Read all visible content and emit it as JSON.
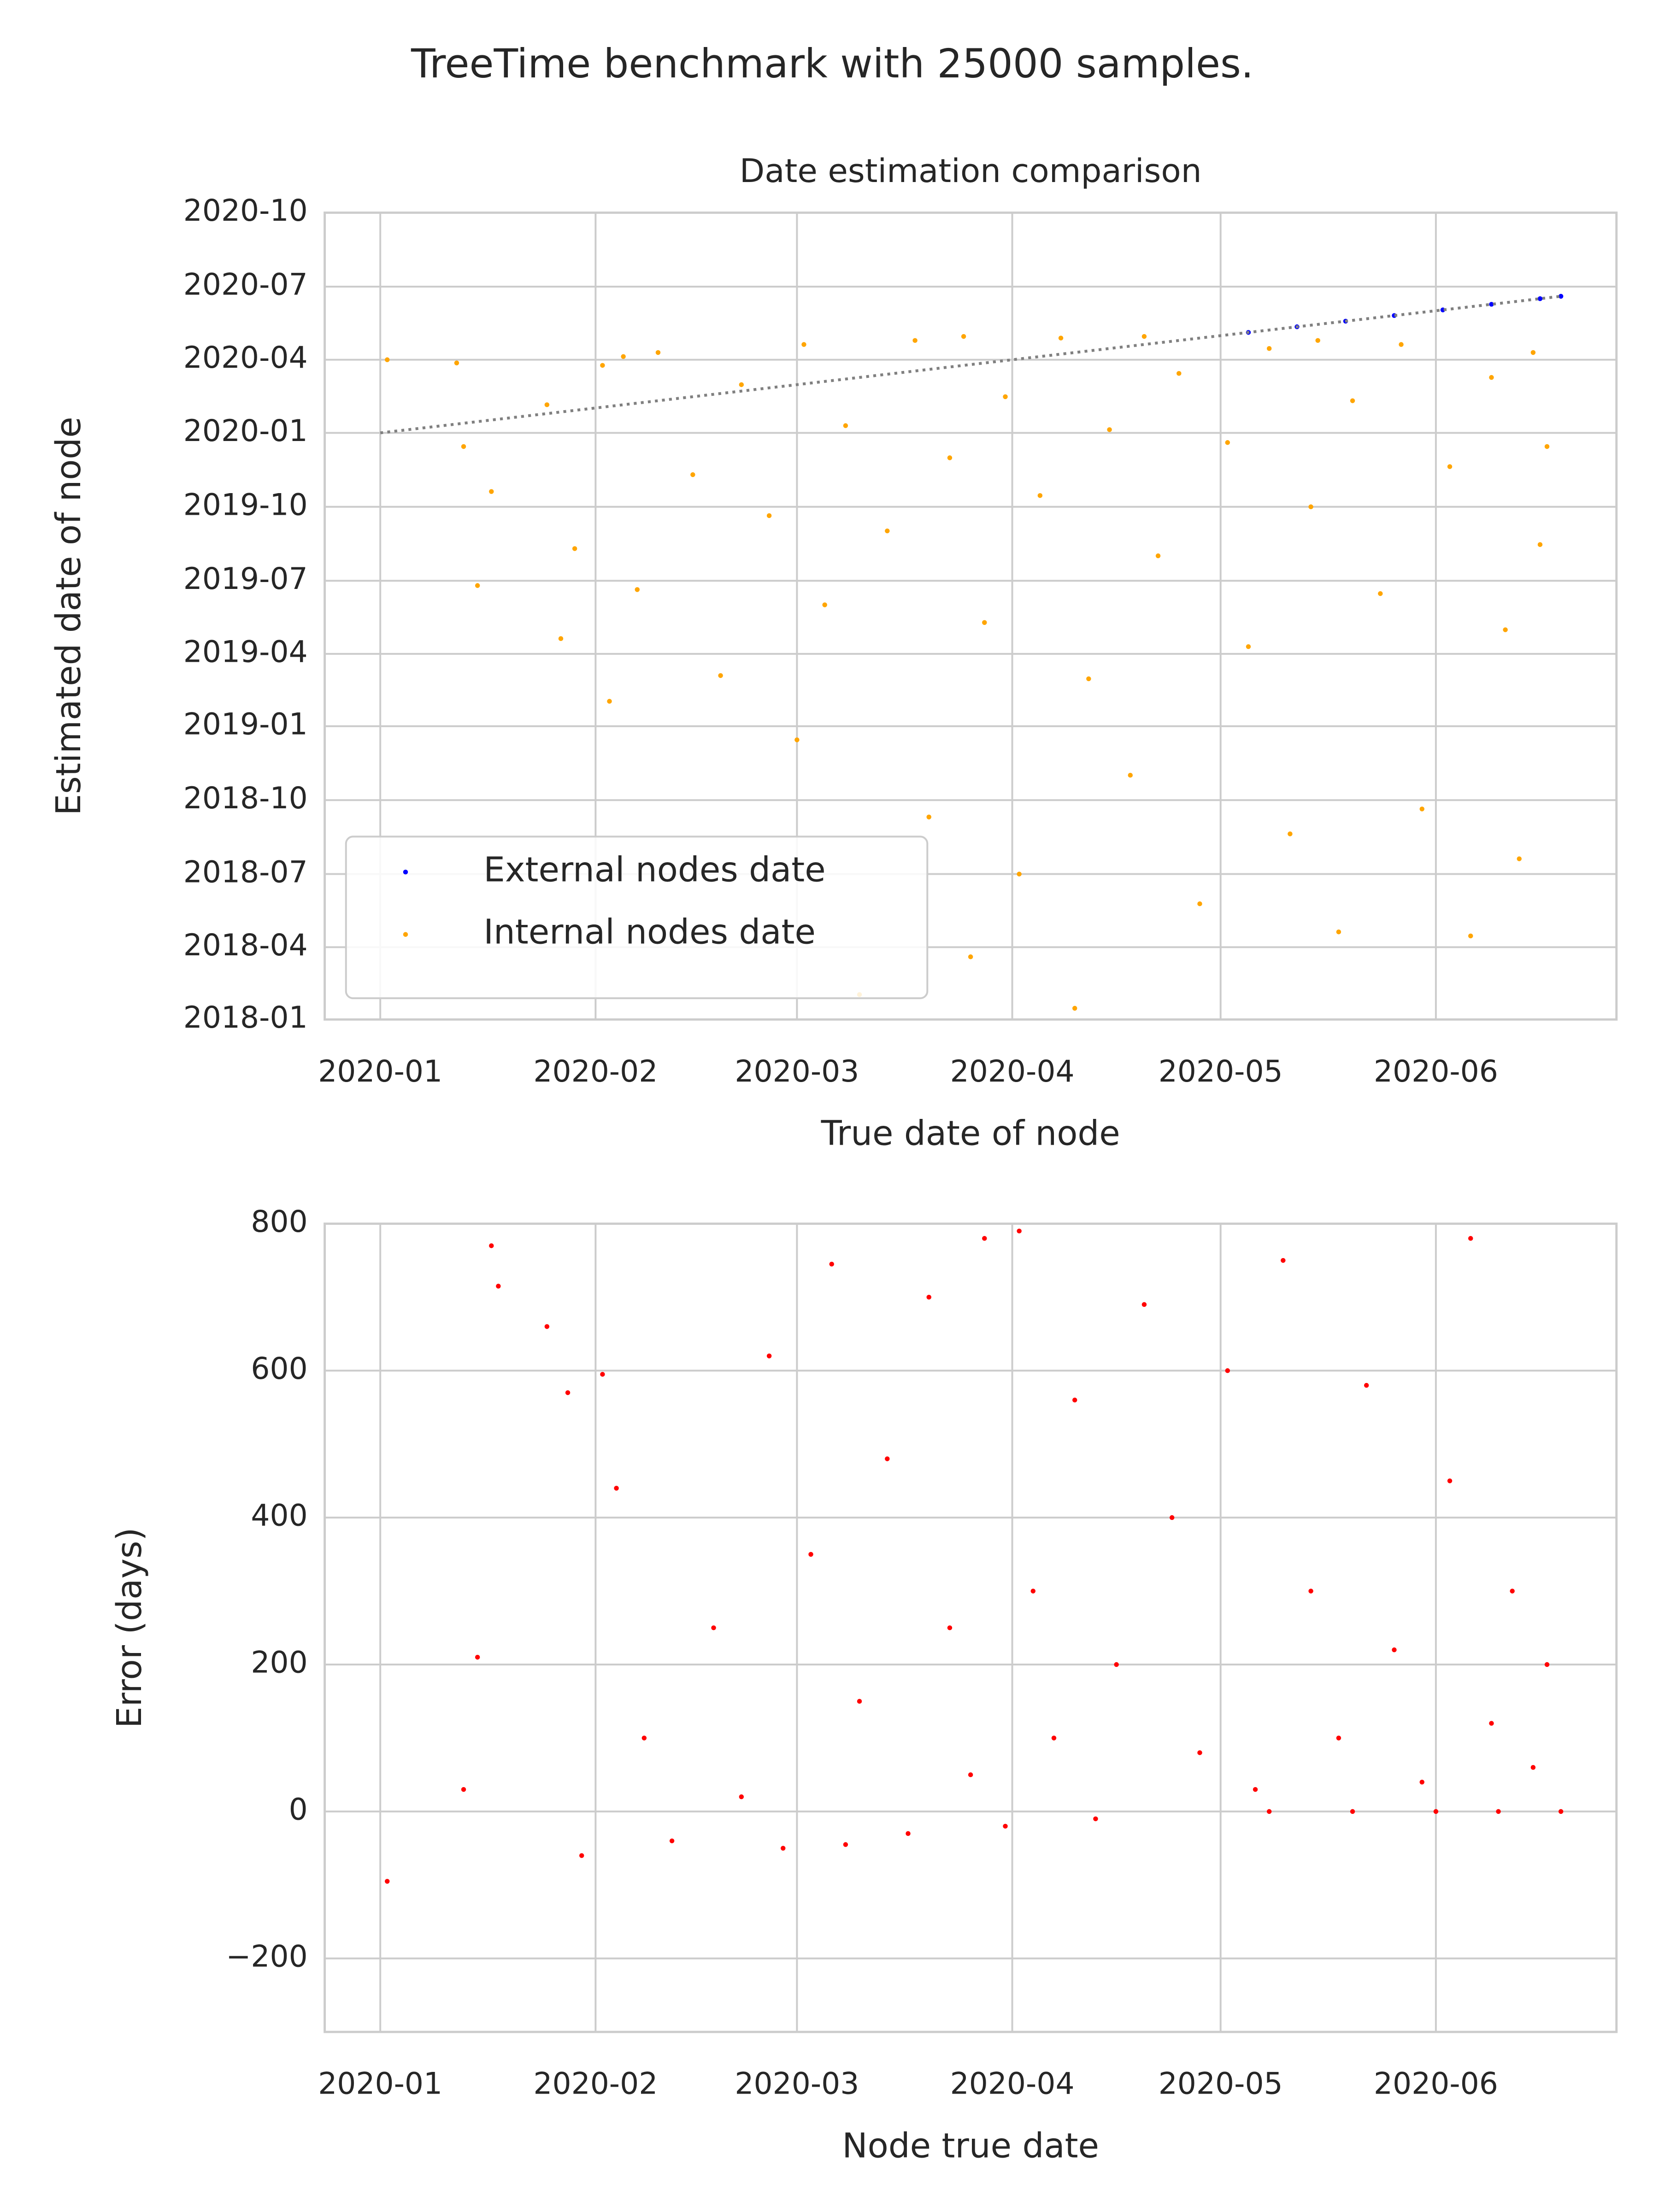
{
  "title": "TreeTime benchmark with 25000 samples.",
  "chart_data": [
    {
      "type": "scatter",
      "title": "Date estimation comparison",
      "xlabel": "True date of node",
      "ylabel": "Estimated date of node",
      "xlim": [
        "2019-12-24",
        "2020-06-27"
      ],
      "xticks": [
        {
          "value": "2020-01-01",
          "label": "2020-01"
        },
        {
          "value": "2020-02-01",
          "label": "2020-02"
        },
        {
          "value": "2020-03-01",
          "label": "2020-03"
        },
        {
          "value": "2020-04-01",
          "label": "2020-04"
        },
        {
          "value": "2020-05-01",
          "label": "2020-05"
        },
        {
          "value": "2020-06-01",
          "label": "2020-06"
        }
      ],
      "ylim": [
        "2018-01-01",
        "2020-10-01"
      ],
      "yticks": [
        {
          "value": "2018-01-01",
          "label": "2018-01"
        },
        {
          "value": "2018-04-01",
          "label": "2018-04"
        },
        {
          "value": "2018-07-01",
          "label": "2018-07"
        },
        {
          "value": "2018-10-01",
          "label": "2018-10"
        },
        {
          "value": "2019-01-01",
          "label": "2019-01"
        },
        {
          "value": "2019-04-01",
          "label": "2019-04"
        },
        {
          "value": "2019-07-01",
          "label": "2019-07"
        },
        {
          "value": "2019-10-01",
          "label": "2019-10"
        },
        {
          "value": "2020-01-01",
          "label": "2020-01"
        },
        {
          "value": "2020-04-01",
          "label": "2020-04"
        },
        {
          "value": "2020-07-01",
          "label": "2020-07"
        },
        {
          "value": "2020-10-01",
          "label": "2020-10"
        }
      ],
      "grid": true,
      "legend": "lower left",
      "series": [
        {
          "name": "Internal nodes date",
          "color": "#ffa500",
          "x": [
            "2020-01-02",
            "2020-01-12",
            "2020-01-13",
            "2020-01-15",
            "2020-01-17",
            "2020-01-25",
            "2020-01-27",
            "2020-01-29",
            "2020-02-02",
            "2020-02-03",
            "2020-02-07",
            "2020-02-10",
            "2020-02-15",
            "2020-02-19",
            "2020-02-22",
            "2020-02-26",
            "2020-03-01",
            "2020-03-02",
            "2020-03-05",
            "2020-03-08",
            "2020-03-10",
            "2020-03-14",
            "2020-03-18",
            "2020-03-20",
            "2020-03-23",
            "2020-03-26",
            "2020-03-28",
            "2020-03-31",
            "2020-04-02",
            "2020-04-05",
            "2020-04-08",
            "2020-04-10",
            "2020-04-12",
            "2020-04-15",
            "2020-04-18",
            "2020-04-22",
            "2020-04-25",
            "2020-04-28",
            "2020-05-02",
            "2020-05-05",
            "2020-05-08",
            "2020-05-11",
            "2020-05-14",
            "2020-05-18",
            "2020-05-20",
            "2020-05-24",
            "2020-05-27",
            "2020-05-30",
            "2020-06-03",
            "2020-06-06",
            "2020-06-09",
            "2020-06-11",
            "2020-06-13",
            "2020-06-15",
            "2020-06-17",
            "2020-03-25",
            "2020-04-20",
            "2020-02-05",
            "2020-05-15",
            "2020-06-16"
          ],
          "values": [
            "2020-04-01",
            "2020-03-28",
            "2019-12-15",
            "2019-06-25",
            "2019-10-20",
            "2020-02-05",
            "2019-04-20",
            "2019-08-10",
            "2020-03-25",
            "2019-02-01",
            "2019-06-20",
            "2020-04-10",
            "2019-11-10",
            "2019-03-05",
            "2020-03-01",
            "2019-09-20",
            "2018-12-15",
            "2020-04-20",
            "2019-06-01",
            "2020-01-10",
            "2018-02-01",
            "2019-09-01",
            "2020-04-25",
            "2018-09-10",
            "2019-12-01",
            "2018-03-20",
            "2019-05-10",
            "2020-02-15",
            "2018-07-01",
            "2019-10-15",
            "2020-04-28",
            "2018-01-15",
            "2019-03-01",
            "2020-01-05",
            "2018-11-01",
            "2019-08-01",
            "2020-03-15",
            "2018-05-25",
            "2019-12-20",
            "2019-04-10",
            "2020-04-15",
            "2018-08-20",
            "2019-10-01",
            "2018-04-20",
            "2020-02-10",
            "2019-06-15",
            "2020-04-20",
            "2018-09-20",
            "2019-11-20",
            "2018-04-15",
            "2020-03-10",
            "2019-05-01",
            "2018-07-20",
            "2020-04-10",
            "2019-12-15",
            "2020-04-30",
            "2020-04-30",
            "2020-04-05",
            "2020-04-25",
            "2019-08-15"
          ]
        },
        {
          "name": "External nodes date",
          "color": "#0000ff",
          "x": [
            "2020-05-05",
            "2020-05-12",
            "2020-05-19",
            "2020-05-26",
            "2020-06-02",
            "2020-06-09",
            "2020-06-16",
            "2020-06-19"
          ],
          "values": [
            "2020-05-05",
            "2020-05-12",
            "2020-05-19",
            "2020-05-26",
            "2020-06-02",
            "2020-06-09",
            "2020-06-16",
            "2020-06-19"
          ]
        }
      ],
      "reference_line": {
        "color": "#808080",
        "x": [
          "2020-01-01",
          "2020-06-19"
        ],
        "values": [
          "2020-01-01",
          "2020-06-19"
        ]
      }
    },
    {
      "type": "scatter",
      "xlabel": "Node true date",
      "ylabel": "Error (days)",
      "xlim": [
        "2019-12-24",
        "2020-06-27"
      ],
      "xticks": [
        {
          "value": "2020-01-01",
          "label": "2020-01"
        },
        {
          "value": "2020-02-01",
          "label": "2020-02"
        },
        {
          "value": "2020-03-01",
          "label": "2020-03"
        },
        {
          "value": "2020-04-01",
          "label": "2020-04"
        },
        {
          "value": "2020-05-01",
          "label": "2020-05"
        },
        {
          "value": "2020-06-01",
          "label": "2020-06"
        }
      ],
      "ylim": [
        -300,
        800
      ],
      "yticks": [
        {
          "value": -200,
          "label": "−200"
        },
        0,
        200,
        400,
        600,
        800
      ],
      "grid": true,
      "series": [
        {
          "color": "#ff0000",
          "x": [
            "2020-01-02",
            "2020-01-13",
            "2020-01-15",
            "2020-01-17",
            "2020-01-18",
            "2020-01-25",
            "2020-01-28",
            "2020-02-02",
            "2020-02-04",
            "2020-01-30",
            "2020-02-08",
            "2020-02-12",
            "2020-02-18",
            "2020-02-22",
            "2020-02-26",
            "2020-02-28",
            "2020-03-03",
            "2020-03-06",
            "2020-03-08",
            "2020-03-10",
            "2020-03-14",
            "2020-03-17",
            "2020-03-20",
            "2020-03-23",
            "2020-03-26",
            "2020-03-28",
            "2020-03-31",
            "2020-04-02",
            "2020-04-04",
            "2020-04-07",
            "2020-04-10",
            "2020-04-13",
            "2020-04-16",
            "2020-04-20",
            "2020-04-24",
            "2020-04-28",
            "2020-05-02",
            "2020-05-06",
            "2020-05-10",
            "2020-05-14",
            "2020-05-18",
            "2020-05-22",
            "2020-05-26",
            "2020-05-30",
            "2020-06-03",
            "2020-06-06",
            "2020-06-09",
            "2020-06-12",
            "2020-06-15",
            "2020-06-17",
            "2020-06-19",
            "2020-05-08",
            "2020-05-20",
            "2020-06-01",
            "2020-06-10"
          ],
          "values": [
            -95,
            30,
            210,
            770,
            715,
            660,
            570,
            595,
            440,
            -60,
            100,
            -40,
            250,
            20,
            620,
            -50,
            350,
            745,
            -45,
            150,
            480,
            -30,
            700,
            250,
            50,
            780,
            -20,
            790,
            300,
            100,
            560,
            -10,
            200,
            690,
            400,
            80,
            600,
            30,
            750,
            300,
            100,
            580,
            220,
            40,
            450,
            780,
            120,
            300,
            60,
            200,
            0,
            0,
            0,
            0,
            0
          ]
        }
      ]
    }
  ]
}
